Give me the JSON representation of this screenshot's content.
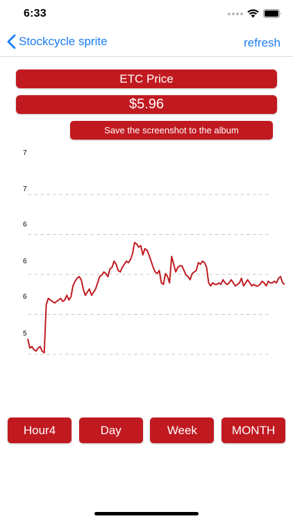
{
  "status": {
    "time": "6:33",
    "icons": [
      "signal-icon",
      "wifi-icon",
      "battery-icon"
    ]
  },
  "nav": {
    "back_label": "Stockcycle sprite",
    "refresh_label": "refresh",
    "accent": "#1a7cf5"
  },
  "header": {
    "title": "ETC Price",
    "price": "$5.96",
    "save_label": "Save the screenshot to the album",
    "brand_color": "#c01a20"
  },
  "tabs": [
    {
      "label": "Hour4"
    },
    {
      "label": "Day"
    },
    {
      "label": "Week"
    },
    {
      "label": "MONTH"
    }
  ],
  "chart_data": {
    "type": "line",
    "title": "",
    "xlabel": "",
    "ylabel": "",
    "y_tick_labels": [
      "7",
      "7",
      "6",
      "6",
      "6",
      "5"
    ],
    "grid": "dashed horizontal",
    "line_color": "#c01a20",
    "series": [
      {
        "values": [
          5.3,
          5.24,
          5.25,
          5.23,
          5.22,
          5.24,
          5.25,
          5.22,
          5.21,
          5.52,
          5.56,
          5.55,
          5.54,
          5.53,
          5.54,
          5.55,
          5.56,
          5.54,
          5.55,
          5.58,
          5.55,
          5.57,
          5.64,
          5.67,
          5.69,
          5.7,
          5.68,
          5.62,
          5.58,
          5.6,
          5.62,
          5.58,
          5.6,
          5.62,
          5.66,
          5.7,
          5.71,
          5.73,
          5.72,
          5.7,
          5.75,
          5.76,
          5.8,
          5.78,
          5.74,
          5.73,
          5.76,
          5.78,
          5.8,
          5.79,
          5.81,
          5.85,
          5.92,
          5.91,
          5.89,
          5.9,
          5.84,
          5.88,
          5.87,
          5.84,
          5.8,
          5.76,
          5.73,
          5.72,
          5.74,
          5.66,
          5.65,
          5.72,
          5.7,
          5.66,
          5.83,
          5.78,
          5.73,
          5.76,
          5.77,
          5.77,
          5.74,
          5.71,
          5.7,
          5.68,
          5.72,
          5.73,
          5.74,
          5.79,
          5.78,
          5.8,
          5.79,
          5.76,
          5.66,
          5.64,
          5.66,
          5.65,
          5.65,
          5.66,
          5.65,
          5.68,
          5.66,
          5.65,
          5.66,
          5.68,
          5.66,
          5.64,
          5.65,
          5.66,
          5.69,
          5.64,
          5.66,
          5.68,
          5.66,
          5.64,
          5.65,
          5.64,
          5.64,
          5.65,
          5.67,
          5.66,
          5.64,
          5.67,
          5.66,
          5.66,
          5.67,
          5.66,
          5.69,
          5.7,
          5.66,
          5.65
        ],
        "ylim": [
          5.2,
          6.05
        ]
      }
    ]
  }
}
